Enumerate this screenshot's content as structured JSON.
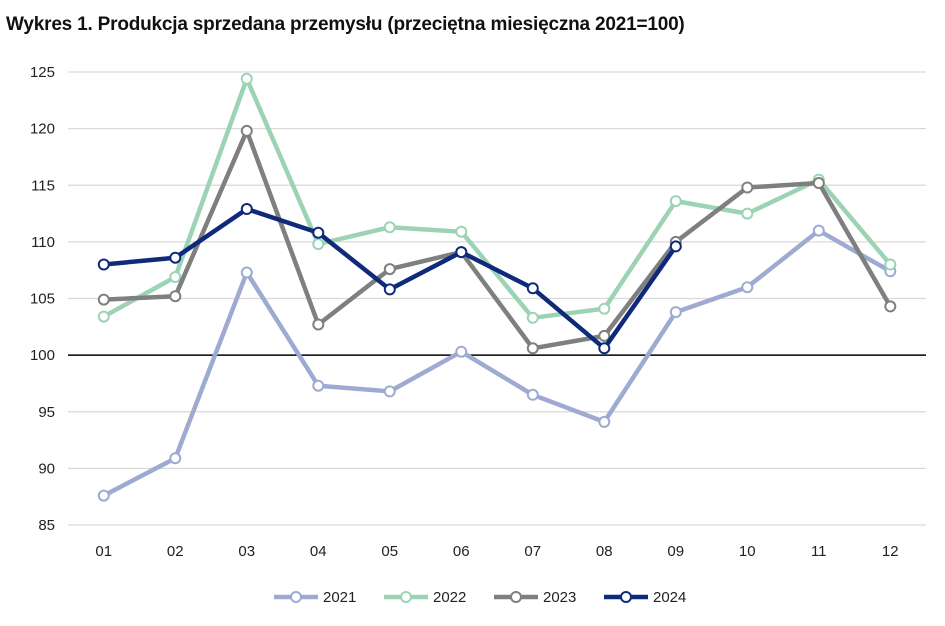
{
  "chart_data": {
    "type": "line",
    "title": "Wykres 1. Produkcja sprzedana przemysłu (przeciętna miesięczna 2021=100)",
    "xlabel": "",
    "ylabel": "",
    "categories": [
      "01",
      "02",
      "03",
      "04",
      "05",
      "06",
      "07",
      "08",
      "09",
      "10",
      "11",
      "12"
    ],
    "ylim": [
      85,
      125
    ],
    "yticks": [
      85,
      90,
      95,
      100,
      105,
      110,
      115,
      120,
      125
    ],
    "grid": true,
    "reference_line": 100,
    "legend_position": "bottom",
    "series": [
      {
        "name": "2021",
        "color": "#9eaad1",
        "values": [
          87.6,
          90.9,
          107.3,
          97.3,
          96.8,
          100.3,
          96.5,
          94.1,
          103.8,
          106.0,
          111.0,
          107.4
        ]
      },
      {
        "name": "2022",
        "color": "#9dd3b5",
        "values": [
          103.4,
          106.9,
          124.4,
          109.8,
          111.3,
          110.9,
          103.3,
          104.1,
          113.6,
          112.5,
          115.5,
          108.0
        ]
      },
      {
        "name": "2023",
        "color": "#7f7f7f",
        "values": [
          104.9,
          105.2,
          119.8,
          102.7,
          107.6,
          109.1,
          100.6,
          101.7,
          110.0,
          114.8,
          115.2,
          104.3
        ]
      },
      {
        "name": "2024",
        "color": "#0f2a7a",
        "values": [
          108.0,
          108.6,
          112.9,
          110.8,
          105.8,
          109.1,
          105.9,
          100.6,
          109.6,
          null,
          null,
          null
        ]
      }
    ]
  }
}
